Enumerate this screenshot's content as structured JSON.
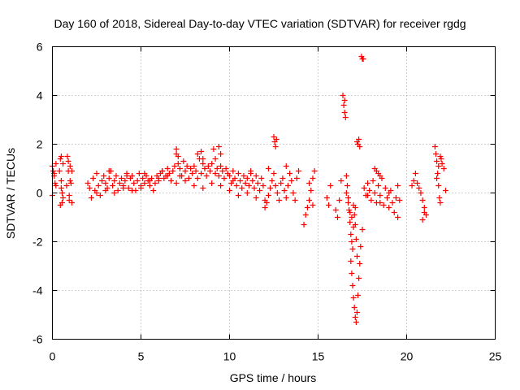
{
  "chart_data": {
    "type": "scatter",
    "title": "Day 160 of 2018, Sidereal Day-to-day VTEC variation (SDTVAR) for receiver rgdg",
    "xlabel": "GPS time / hours",
    "ylabel": "SDTVAR / TECUs",
    "xlim": [
      0,
      25
    ],
    "ylim": [
      -6,
      6
    ],
    "x_ticks": [
      0,
      5,
      10,
      15,
      20,
      25
    ],
    "x_tick_labels": [
      "0",
      "5",
      "10",
      "15",
      "20",
      "25"
    ],
    "y_ticks": [
      -6,
      -4,
      -2,
      0,
      2,
      4,
      6
    ],
    "y_tick_labels": [
      "-6",
      "-4",
      "-2",
      "0",
      "2",
      "4",
      "6"
    ],
    "grid": true,
    "marker": "plus",
    "series": [
      {
        "name": "SDTVAR",
        "color": "#ff0000",
        "x": [
          0.0,
          0.05,
          0.1,
          0.15,
          0.2,
          0.0,
          0.1,
          0.2,
          0.4,
          0.45,
          0.5,
          0.55,
          0.6,
          0.45,
          0.5,
          0.55,
          0.5,
          0.6,
          0.8,
          0.85,
          0.9,
          0.95,
          1.0,
          1.05,
          1.1,
          0.9,
          1.0,
          1.1,
          0.95,
          2.0,
          2.1,
          2.2,
          2.3,
          2.4,
          2.5,
          2.6,
          2.7,
          2.8,
          2.9,
          3.0,
          3.1,
          3.2,
          3.3,
          3.4,
          3.5,
          3.6,
          3.7,
          3.8,
          3.9,
          4.0,
          4.1,
          4.2,
          4.3,
          4.4,
          4.5,
          4.6,
          4.7,
          4.8,
          4.9,
          5.0,
          5.1,
          5.2,
          5.3,
          5.4,
          5.5,
          5.6,
          5.7,
          5.8,
          5.9,
          6.0,
          6.1,
          6.2,
          6.3,
          6.4,
          6.5,
          6.6,
          6.7,
          6.8,
          6.9,
          7.0,
          7.1,
          7.2,
          7.3,
          7.4,
          7.5,
          7.6,
          7.7,
          7.8,
          7.9,
          8.0,
          8.1,
          8.2,
          8.3,
          8.4,
          8.5,
          8.6,
          8.7,
          8.8,
          8.9,
          9.0,
          9.1,
          9.2,
          9.3,
          9.4,
          9.5,
          9.6,
          9.7,
          9.8,
          9.9,
          10.0,
          10.1,
          10.2,
          10.3,
          10.4,
          10.5,
          10.6,
          10.7,
          10.8,
          10.9,
          11.0,
          11.1,
          11.2,
          11.3,
          11.4,
          11.5,
          11.6,
          11.7,
          11.8,
          11.9,
          12.0,
          12.1,
          12.2,
          12.3,
          12.4,
          12.5,
          12.6,
          12.7,
          12.8,
          12.9,
          13.0,
          13.1,
          13.2,
          13.3,
          13.4,
          13.5,
          13.6,
          13.7,
          13.8,
          13.9,
          2.5,
          3.0,
          3.5,
          4.0,
          4.5,
          5.0,
          5.5,
          6.0,
          6.5,
          7.0,
          7.5,
          8.0,
          8.5,
          9.0,
          9.5,
          10.0,
          10.5,
          11.0,
          11.5,
          12.0,
          3.2,
          4.2,
          5.2,
          6.2,
          7.2,
          8.2,
          9.2,
          10.2,
          11.2,
          12.2,
          13.2,
          7.0,
          7.1,
          8.4,
          8.5,
          9.4,
          9.5,
          12.5,
          12.55,
          12.6,
          12.65,
          14.2,
          14.3,
          14.4,
          14.5,
          14.6,
          14.7,
          14.8,
          14.5,
          14.7,
          15.5,
          15.6,
          15.7,
          16.0,
          16.1,
          16.2,
          16.3,
          16.4,
          16.45,
          16.5,
          16.55,
          16.5,
          16.6,
          16.65,
          16.7,
          16.75,
          16.8,
          16.85,
          16.9,
          16.95,
          17.0,
          17.05,
          17.1,
          17.15,
          17.2,
          16.6,
          16.7,
          16.8,
          16.9,
          17.0,
          17.1,
          16.85,
          16.9,
          16.95,
          17.0,
          17.05,
          17.1,
          17.15,
          17.2,
          17.25,
          17.3,
          17.35,
          17.4,
          17.5,
          17.2,
          17.25,
          17.3,
          17.35,
          17.45,
          17.5,
          17.55,
          17.6,
          17.7,
          17.8,
          17.9,
          18.0,
          18.1,
          18.2,
          18.3,
          18.4,
          18.5,
          18.6,
          18.7,
          18.8,
          18.9,
          19.0,
          19.1,
          19.2,
          19.3,
          19.4,
          19.5,
          19.6,
          18.2,
          18.3,
          18.4,
          18.5,
          17.8,
          18.5,
          19.0,
          19.5,
          20.3,
          20.4,
          20.5,
          20.6,
          20.7,
          20.8,
          20.9,
          21.0,
          21.1,
          20.9,
          21.0,
          21.6,
          21.65,
          21.7,
          21.75,
          21.8,
          21.85,
          21.9,
          21.95,
          22.0,
          22.1,
          22.2,
          21.7,
          21.8,
          21.9
        ],
        "y": [
          1.1,
          0.9,
          0.7,
          0.4,
          1.2,
          -0.1,
          0.8,
          0.3,
          0.9,
          1.4,
          0.2,
          -0.4,
          1.2,
          -0.5,
          0.5,
          0.0,
          1.5,
          -0.2,
          0.3,
          1.5,
          0.9,
          -0.3,
          1.1,
          0.4,
          -0.4,
          1.3,
          0.5,
          0.9,
          -0.1,
          0.4,
          0.2,
          -0.2,
          0.6,
          0.1,
          0.8,
          0.3,
          -0.1,
          0.5,
          0.7,
          0.4,
          0.2,
          0.6,
          0.9,
          0.3,
          0.5,
          0.7,
          0.1,
          0.4,
          0.6,
          0.3,
          0.5,
          0.8,
          0.2,
          0.6,
          0.7,
          0.4,
          0.1,
          0.5,
          0.8,
          0.2,
          0.6,
          0.4,
          0.7,
          0.5,
          0.3,
          0.6,
          0.1,
          0.4,
          0.7,
          0.5,
          0.8,
          0.9,
          0.6,
          0.7,
          1.0,
          0.8,
          0.5,
          0.9,
          1.1,
          1.6,
          1.2,
          1.0,
          0.7,
          1.3,
          0.9,
          1.1,
          0.6,
          1.0,
          0.8,
          1.1,
          0.9,
          1.6,
          1.4,
          0.8,
          1.2,
          1.0,
          0.7,
          1.1,
          0.9,
          1.2,
          1.8,
          1.4,
          1.0,
          0.7,
          1.1,
          0.9,
          0.6,
          1.0,
          0.8,
          0.7,
          0.4,
          0.9,
          0.6,
          0.3,
          0.8,
          0.5,
          0.2,
          0.7,
          0.4,
          0.6,
          0.3,
          0.8,
          0.5,
          0.2,
          0.7,
          0.4,
          0.1,
          0.6,
          0.3,
          -0.6,
          -0.4,
          -0.1,
          0.2,
          0.5,
          0.8,
          0.3,
          0.0,
          -0.3,
          0.4,
          0.6,
          0.1,
          -0.2,
          0.3,
          0.8,
          0.5,
          0.0,
          -0.3,
          0.6,
          0.9,
          0.0,
          0.1,
          0.0,
          0.2,
          0.1,
          0.3,
          0.5,
          0.6,
          0.7,
          0.4,
          0.5,
          0.3,
          0.2,
          0.4,
          0.3,
          0.1,
          -0.1,
          0.0,
          -0.2,
          -0.3,
          0.9,
          0.7,
          0.8,
          0.9,
          0.7,
          0.6,
          0.8,
          0.5,
          0.9,
          1.0,
          1.1,
          1.8,
          1.5,
          1.7,
          1.4,
          1.9,
          1.6,
          2.3,
          2.1,
          1.9,
          2.2,
          -1.3,
          -0.9,
          -0.6,
          -0.3,
          0.1,
          0.6,
          0.9,
          0.4,
          -0.5,
          -0.2,
          -0.5,
          0.3,
          -0.7,
          -1.0,
          -0.3,
          0.5,
          4.0,
          3.6,
          3.3,
          3.1,
          3.8,
          0.7,
          0.3,
          -0.2,
          -0.7,
          -1.2,
          -1.7,
          -2.0,
          -2.3,
          -0.5,
          -0.9,
          -1.3,
          -1.9,
          -2.6,
          0.0,
          -0.4,
          -0.8,
          -1.0,
          -1.4,
          -0.6,
          -2.8,
          -3.3,
          -3.8,
          -4.3,
          -4.7,
          -5.1,
          -5.3,
          -4.9,
          -4.2,
          -3.5,
          -2.9,
          -2.2,
          -1.5,
          2.1,
          2.0,
          2.2,
          1.9,
          5.6,
          5.5,
          5.5,
          0.2,
          -0.1,
          0.4,
          0.1,
          -0.3,
          0.5,
          0.0,
          -0.4,
          0.3,
          -0.1,
          0.6,
          -0.5,
          0.2,
          -0.2,
          -0.6,
          0.1,
          -0.4,
          -0.8,
          -0.2,
          -1.0,
          -0.3,
          1.0,
          0.9,
          0.8,
          0.7,
          -0.1,
          -0.4,
          0.0,
          0.3,
          0.3,
          0.5,
          0.8,
          0.4,
          0.2,
          0.0,
          -0.3,
          -0.6,
          -0.9,
          -1.1,
          -0.8,
          1.9,
          1.6,
          1.3,
          0.8,
          0.3,
          -0.2,
          -0.4,
          1.4,
          1.2,
          1.0,
          0.1,
          0.6,
          1.1,
          1.5
        ]
      }
    ]
  }
}
